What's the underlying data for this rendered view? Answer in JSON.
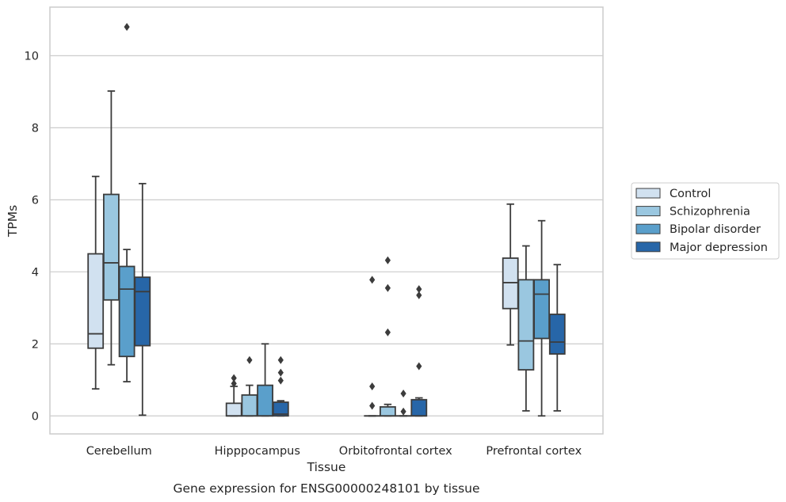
{
  "caption": "Gene expression for ENSG00000248101 by tissue",
  "chart_data": {
    "type": "box",
    "title": "",
    "xlabel": "Tissue",
    "ylabel": "TPMs",
    "ylim": [
      -0.5,
      11.35
    ],
    "yticks": [
      0,
      2,
      4,
      6,
      8,
      10
    ],
    "grid": "horizontal",
    "legend_position": "right",
    "categories": [
      "Cerebellum",
      "Hipppocampus",
      "Orbitofrontal cortex",
      "Prefrontal cortex"
    ],
    "series": [
      {
        "name": "Control",
        "color": "#d1e1f0",
        "boxes": [
          {
            "whisker_low": 0.75,
            "q1": 1.88,
            "median": 2.28,
            "q3": 4.5,
            "whisker_high": 6.65,
            "outliers": []
          },
          {
            "whisker_low": 0.0,
            "q1": 0.0,
            "median": 0.0,
            "q3": 0.35,
            "whisker_high": 0.82,
            "outliers": [
              0.9,
              1.05
            ]
          },
          {
            "whisker_low": 0.0,
            "q1": 0.0,
            "median": 0.0,
            "q3": 0.0,
            "whisker_high": 0.0,
            "outliers": [
              0.28,
              0.82,
              3.78
            ]
          },
          {
            "whisker_low": 1.97,
            "q1": 2.98,
            "median": 3.7,
            "q3": 4.38,
            "whisker_high": 5.88,
            "outliers": []
          }
        ]
      },
      {
        "name": "Schizophrenia",
        "color": "#9ac7e0",
        "boxes": [
          {
            "whisker_low": 1.42,
            "q1": 3.22,
            "median": 4.25,
            "q3": 6.15,
            "whisker_high": 9.02,
            "outliers": []
          },
          {
            "whisker_low": 0.0,
            "q1": 0.0,
            "median": 0.0,
            "q3": 0.58,
            "whisker_high": 0.85,
            "outliers": [
              1.55
            ]
          },
          {
            "whisker_low": 0.0,
            "q1": 0.0,
            "median": 0.0,
            "q3": 0.25,
            "whisker_high": 0.32,
            "outliers": [
              2.32,
              3.55,
              4.32
            ]
          },
          {
            "whisker_low": 0.14,
            "q1": 1.28,
            "median": 2.08,
            "q3": 3.78,
            "whisker_high": 4.72,
            "outliers": []
          }
        ]
      },
      {
        "name": "Bipolar disorder",
        "color": "#5a9fcb",
        "boxes": [
          {
            "whisker_low": 0.95,
            "q1": 1.65,
            "median": 3.52,
            "q3": 4.15,
            "whisker_high": 4.62,
            "outliers": [
              10.8
            ]
          },
          {
            "whisker_low": 0.0,
            "q1": 0.0,
            "median": 0.0,
            "q3": 0.85,
            "whisker_high": 2.0,
            "outliers": []
          },
          {
            "whisker_low": 0.0,
            "q1": 0.0,
            "median": 0.0,
            "q3": 0.0,
            "whisker_high": 0.0,
            "outliers": [
              0.12,
              0.62
            ]
          },
          {
            "whisker_low": 0.0,
            "q1": 2.15,
            "median": 3.38,
            "q3": 3.78,
            "whisker_high": 5.42,
            "outliers": []
          }
        ]
      },
      {
        "name": "Major depression",
        "color": "#2766a8",
        "boxes": [
          {
            "whisker_low": 0.02,
            "q1": 1.95,
            "median": 3.45,
            "q3": 3.85,
            "whisker_high": 6.45,
            "outliers": []
          },
          {
            "whisker_low": 0.0,
            "q1": 0.0,
            "median": 0.05,
            "q3": 0.38,
            "whisker_high": 0.42,
            "outliers": [
              0.98,
              1.2,
              1.55
            ]
          },
          {
            "whisker_low": 0.0,
            "q1": 0.0,
            "median": 0.0,
            "q3": 0.45,
            "whisker_high": 0.5,
            "outliers": [
              1.38,
              3.35,
              3.52
            ]
          },
          {
            "whisker_low": 0.14,
            "q1": 1.72,
            "median": 2.05,
            "q3": 2.82,
            "whisker_high": 4.2,
            "outliers": []
          }
        ]
      }
    ]
  }
}
